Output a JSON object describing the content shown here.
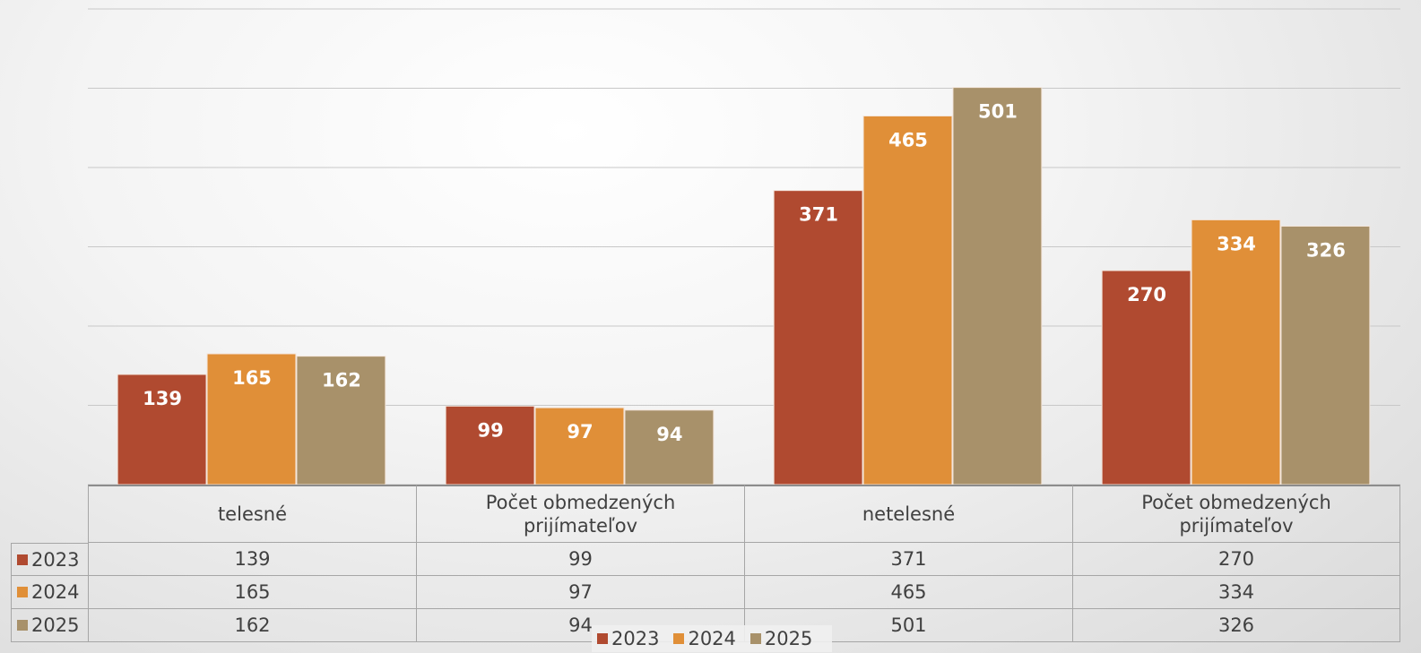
{
  "chart_data": {
    "type": "bar",
    "categories": [
      "telesné",
      "Počet obmedzených prijímateľov",
      "netelesné",
      "Počet obmedzených prijímateľov"
    ],
    "series": [
      {
        "name": "2023",
        "color": "#b04a30",
        "values": [
          139,
          99,
          371,
          270
        ]
      },
      {
        "name": "2024",
        "color": "#e08f38",
        "values": [
          165,
          97,
          465,
          334
        ]
      },
      {
        "name": "2025",
        "color": "#a8916a",
        "values": [
          162,
          94,
          501,
          326
        ]
      }
    ],
    "ylim": [
      0,
      600
    ],
    "yticks": [
      0,
      100,
      200,
      300,
      400,
      500,
      600
    ],
    "grid": true,
    "legend": "bottom",
    "data_table": true
  }
}
